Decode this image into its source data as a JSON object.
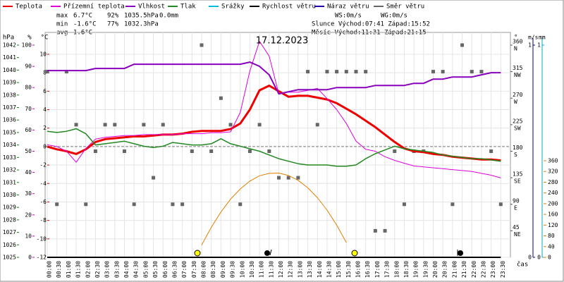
{
  "chart_data": {
    "type": "line",
    "title": "17.12.2023",
    "x_label": "čas",
    "x": [
      "00:00",
      "00:30",
      "01:00",
      "01:30",
      "02:00",
      "02:30",
      "03:00",
      "03:30",
      "04:00",
      "04:30",
      "05:00",
      "05:30",
      "06:00",
      "06:30",
      "07:00",
      "07:30",
      "08:00",
      "08:30",
      "09:00",
      "09:30",
      "10:00",
      "10:30",
      "11:00",
      "11:30",
      "12:00",
      "12:30",
      "13:00",
      "13:30",
      "14:00",
      "14:30",
      "15:00",
      "15:30",
      "16:00",
      "16:30",
      "17:00",
      "17:30",
      "18:00",
      "18:30",
      "19:00",
      "19:30",
      "20:00",
      "20:30",
      "21:00",
      "21:30",
      "22:00",
      "22:30",
      "23:00",
      "23:30"
    ],
    "grid": true,
    "axes": {
      "hpa": {
        "label": "hPa",
        "color": "#008800",
        "lim": [
          1025,
          1042
        ],
        "ticks": [
          1025,
          1026,
          1027,
          1028,
          1029,
          1030,
          1031,
          1032,
          1033,
          1034,
          1035,
          1036,
          1037,
          1038,
          1039,
          1040,
          1041,
          1042
        ]
      },
      "pct": {
        "label": "%",
        "color": "#cc00cc",
        "lim": [
          0,
          100
        ],
        "ticks": [
          0,
          10,
          20,
          30,
          40,
          50,
          60,
          70,
          80,
          90,
          100
        ]
      },
      "temp": {
        "label": "°C",
        "color": "#dd0000",
        "lim": [
          -12,
          10
        ],
        "ticks": [
          -12,
          -10,
          -8,
          -6,
          -4,
          -2,
          0,
          2,
          4,
          6,
          8,
          10
        ]
      },
      "deg": {
        "label": "°",
        "color": "#555555",
        "lim": [
          0,
          360
        ],
        "ticks": [
          45,
          90,
          135,
          180,
          225,
          270,
          315,
          360
        ],
        "compass": [
          "NE",
          "E",
          "SE",
          "S",
          "SW",
          "W",
          "NW",
          "N"
        ]
      },
      "ms": {
        "label": "m/s",
        "color": "#000088",
        "lim": [
          0,
          1
        ],
        "ticks": [
          0,
          1
        ]
      },
      "mm": {
        "label": "mm",
        "color": "#00aacc",
        "lim": [
          0,
          1
        ],
        "ticks": [
          0,
          1
        ]
      },
      "sun": {
        "color": "#e08000",
        "lim": [
          0,
          360
        ],
        "ticks": [
          0,
          40,
          80,
          120,
          160,
          200,
          240,
          280,
          320,
          360
        ]
      }
    },
    "series": [
      {
        "name": "Teplota",
        "color": "#ee0000",
        "axis": "temp",
        "width": 3,
        "values": [
          0.0,
          -0.3,
          -0.5,
          -0.8,
          -0.3,
          0.5,
          0.8,
          0.9,
          1.0,
          1.1,
          1.1,
          1.2,
          1.3,
          1.3,
          1.4,
          1.6,
          1.7,
          1.7,
          1.7,
          1.9,
          2.5,
          4.0,
          6.1,
          6.6,
          6.0,
          5.4,
          5.5,
          5.5,
          5.3,
          5.1,
          4.7,
          4.1,
          3.5,
          2.8,
          2.1,
          1.3,
          0.5,
          -0.2,
          -0.5,
          -0.6,
          -0.8,
          -0.9,
          -1.1,
          -1.2,
          -1.3,
          -1.4,
          -1.4,
          -1.5
        ]
      },
      {
        "name": "Přízemní teplota",
        "color": "#dd00dd",
        "axis": "temp",
        "width": 1,
        "values": [
          0.2,
          0.0,
          -0.5,
          -1.7,
          -0.2,
          0.8,
          1.0,
          1.1,
          1.2,
          1.2,
          1.3,
          1.3,
          1.3,
          1.3,
          1.4,
          1.4,
          1.4,
          1.5,
          1.5,
          1.6,
          3.7,
          8.2,
          11.4,
          9.8,
          5.7,
          5.9,
          5.9,
          6.1,
          6.3,
          5.2,
          4.0,
          2.5,
          0.6,
          -0.3,
          -0.5,
          -1.1,
          -1.5,
          -1.8,
          -2.1,
          -2.2,
          -2.3,
          -2.4,
          -2.5,
          -2.6,
          -2.7,
          -2.9,
          -3.1,
          -3.4
        ]
      },
      {
        "name": "Vlhkost",
        "color": "#8800bb",
        "axis": "pct",
        "width": 2,
        "values": [
          88,
          88,
          88,
          88,
          88,
          89,
          89,
          89,
          89,
          91,
          91,
          91,
          91,
          91,
          91,
          91,
          91,
          91,
          91,
          91,
          91,
          92,
          90,
          86,
          77,
          78,
          79,
          79,
          79,
          79,
          80,
          80,
          80,
          80,
          81,
          81,
          81,
          81,
          82,
          82,
          84,
          84,
          85,
          85,
          85,
          86,
          87,
          87
        ]
      },
      {
        "name": "Tlak",
        "color": "#228822",
        "axis": "hpa",
        "width": 1.5,
        "values": [
          1035.1,
          1035.0,
          1035.1,
          1035.3,
          1034.9,
          1034.0,
          1034.1,
          1034.2,
          1034.3,
          1034.1,
          1033.9,
          1033.8,
          1033.9,
          1034.2,
          1034.1,
          1034.0,
          1034.0,
          1034.1,
          1034.5,
          1034.1,
          1033.9,
          1033.7,
          1033.5,
          1033.2,
          1032.9,
          1032.7,
          1032.5,
          1032.4,
          1032.4,
          1032.4,
          1032.3,
          1032.3,
          1032.4,
          1032.9,
          1033.3,
          1033.6,
          1033.9,
          1033.7,
          1033.6,
          1033.5,
          1033.4,
          1033.2,
          1033.1,
          1033.0,
          1032.9,
          1032.9,
          1032.8,
          1032.7
        ]
      },
      {
        "name": "Srážky",
        "color": "#00bbdd",
        "axis": "mm"
      },
      {
        "name": "Rychlost větru",
        "color": "#000000",
        "axis": "ms",
        "width": 2,
        "values": [
          0,
          0,
          0,
          0,
          0,
          0,
          0,
          0,
          0,
          0,
          0,
          0,
          0,
          0,
          0,
          0,
          0,
          0,
          0,
          0,
          0,
          0,
          0,
          0,
          0,
          0,
          0,
          0,
          0,
          0,
          0,
          0,
          0,
          0,
          0,
          0,
          0,
          0,
          0,
          0,
          0,
          0,
          0,
          0,
          0,
          0,
          0,
          0
        ]
      },
      {
        "name": "Náraz větru",
        "color": "#2200aa",
        "axis": "ms"
      },
      {
        "name": "Směr větru",
        "color": "#666666",
        "axis": "deg",
        "marker": "square",
        "values": [
          315,
          90,
          315,
          225,
          90,
          180,
          225,
          225,
          180,
          90,
          225,
          135,
          225,
          90,
          90,
          180,
          360,
          180,
          270,
          225,
          90,
          180,
          225,
          180,
          135,
          135,
          135,
          315,
          225,
          315,
          315,
          315,
          315,
          315,
          45,
          45,
          180,
          90,
          180,
          180,
          315,
          315,
          90,
          360,
          315,
          315,
          180,
          90
        ]
      },
      {
        "color": "#e08000",
        "axis": "sun",
        "width": 1,
        "values": [
          null,
          null,
          null,
          null,
          null,
          null,
          null,
          null,
          null,
          null,
          null,
          null,
          null,
          null,
          null,
          null,
          46,
          112,
          169,
          217,
          255,
          284,
          304,
          313,
          314,
          305,
          287,
          259,
          222,
          176,
          120,
          55,
          null,
          null,
          null,
          null,
          null,
          null,
          null,
          null,
          null,
          null,
          null,
          null,
          null,
          null,
          null,
          null
        ]
      }
    ],
    "stats": [
      {
        "label": "max",
        "temp": "6.7°C",
        "hum": "92%",
        "press": "1035.5hPa",
        "rain": "0.0mm"
      },
      {
        "label": "min",
        "temp": "-1.6°C",
        "hum": "77%",
        "press": "1032.3hPa"
      },
      {
        "label": "avg",
        "temp": "1.6°C"
      }
    ],
    "wind": {
      "ws": "WS:0m/s",
      "wg": "WG:0m/s"
    },
    "sun_info": "Slunce Východ:07:41  Západ:15:52",
    "moon_info": "Měsíc  Východ:11:31  Západ:21:15"
  }
}
